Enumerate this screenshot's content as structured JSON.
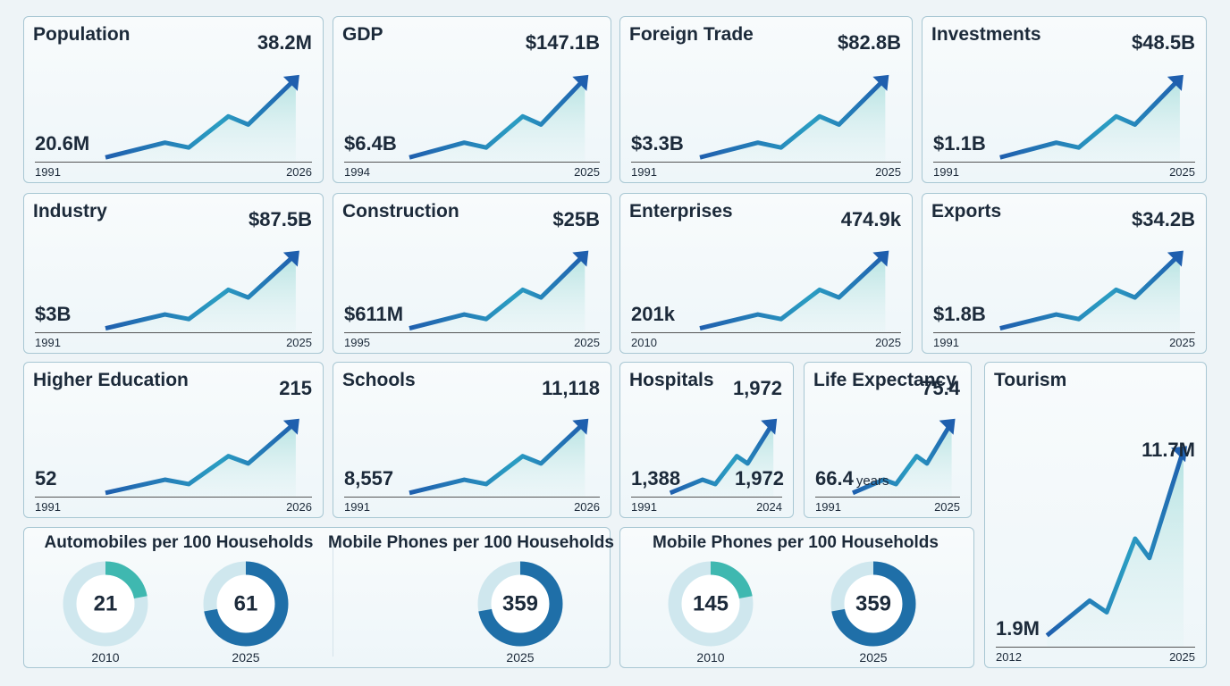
{
  "panels": [
    {
      "title": "Population",
      "end_value": "38.2M",
      "start_value": "20.6M",
      "start_year": "1991",
      "end_year": "2026"
    },
    {
      "title": "GDP",
      "end_value": "$147.1B",
      "start_value": "$6.4B",
      "start_year": "1994",
      "end_year": "2025"
    },
    {
      "title": "Foreign Trade",
      "end_value": "$82.8B",
      "start_value": "$3.3B",
      "start_year": "1991",
      "end_year": "2025"
    },
    {
      "title": "Investments",
      "end_value": "$48.5B",
      "start_value": "$1.1B",
      "start_year": "1991",
      "end_year": "2025"
    },
    {
      "title": "Industry",
      "end_value": "$87.5B",
      "start_value": "$3B",
      "start_year": "1991",
      "end_year": "2025"
    },
    {
      "title": "Construction",
      "end_value": "$25B",
      "start_value": "$611M",
      "start_year": "1995",
      "end_year": "2025"
    },
    {
      "title": "Enterprises",
      "end_value": "474.9k",
      "start_value": "201k",
      "start_year": "2010",
      "end_year": "2025"
    },
    {
      "title": "Exports",
      "end_value": "$34.2B",
      "start_value": "$1.8B",
      "start_year": "1991",
      "end_year": "2025"
    },
    {
      "title": "Higher Education",
      "end_value": "215",
      "start_value": "52",
      "start_year": "1991",
      "end_year": "2026"
    },
    {
      "title": "Schools",
      "end_value": "11,118",
      "start_value": "8,557",
      "start_year": "1991",
      "end_year": "2026"
    },
    {
      "title": "Hospitals",
      "end_value": "1,972",
      "start_value": "1,388",
      "extra_label": "1,972",
      "start_year": "1991",
      "end_year": "2024"
    },
    {
      "title": "Life Expectancy",
      "end_value": "75.4",
      "start_value": "66.4",
      "start_unit": "years",
      "start_year": "1991",
      "end_year": "2025"
    },
    {
      "title": "Tourism",
      "end_value": "11.7M",
      "start_value": "1.9M",
      "start_year": "2012",
      "end_year": "2025"
    }
  ],
  "donut_groups": [
    {
      "title": "Automobiles per 100 Households",
      "items": [
        {
          "value": 21,
          "year": "2010"
        },
        {
          "value": 61,
          "year": "2025"
        }
      ]
    },
    {
      "title": "Mobile Phones per 100 Households",
      "items": [
        {
          "value": 359,
          "year": "2025"
        }
      ]
    },
    {
      "title": "Mobile Phones per 100 Households",
      "items": [
        {
          "value": 145,
          "year": "2010"
        },
        {
          "value": 359,
          "year": "2025"
        }
      ]
    }
  ]
}
